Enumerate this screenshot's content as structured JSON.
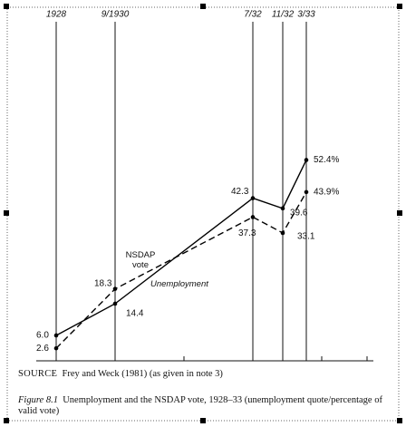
{
  "chart_data": {
    "type": "line",
    "categories": [
      "1928",
      "9/1930",
      "7/32",
      "11/32",
      "3/33"
    ],
    "series": [
      {
        "name": "Unemployment",
        "color": "#000000",
        "dashed": false,
        "values": [
          6.0,
          14.4,
          42.3,
          39.6,
          52.4
        ],
        "value_labels": [
          "6.0",
          "14.4",
          "42.3",
          "39.6",
          "52.4%"
        ]
      },
      {
        "name": "NSDAP vote",
        "color": "#000000",
        "dashed": true,
        "values": [
          2.6,
          18.3,
          37.3,
          33.1,
          43.9
        ],
        "value_labels": [
          "2.6",
          "18.3",
          "37.3",
          "33.1",
          "43.9%"
        ]
      }
    ],
    "ylim": [
      0,
      88
    ]
  },
  "source": {
    "label": "SOURCE",
    "text": "Frey and Weck (1981) (as given in note 3)"
  },
  "caption": {
    "label": "Figure 8.1",
    "text": "Unemployment and the NSDAP vote, 1928–33 (unemployment quote/percentage of valid vote)"
  }
}
